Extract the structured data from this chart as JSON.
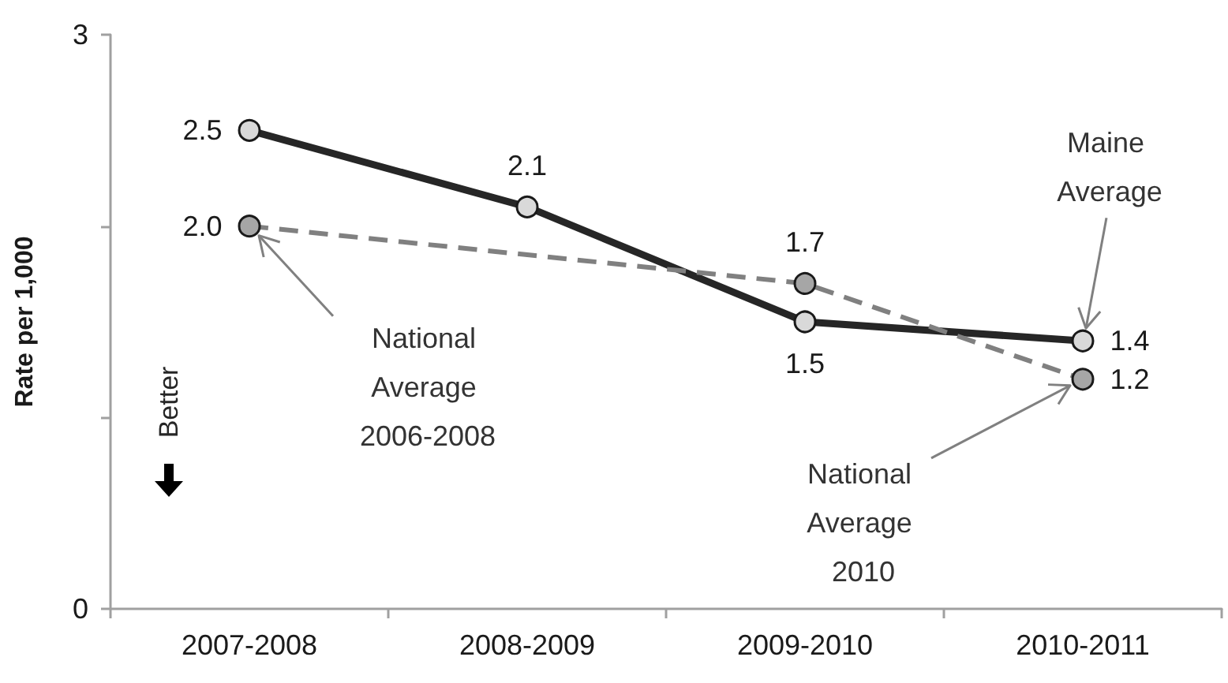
{
  "chart_data": {
    "type": "line",
    "ylabel": "Rate per 1,000",
    "categories": [
      "2007-2008",
      "2008-2009",
      "2009-2010",
      "2010-2011"
    ],
    "series": [
      {
        "color": "#262626",
        "line_style": "solid",
        "values": [
          2.5,
          2.1,
          1.5,
          1.4
        ],
        "value_labels": [
          "2.5",
          "2.1",
          "1.5",
          "1.4"
        ]
      },
      {
        "color": "#808080",
        "line_style": "dashed",
        "x": [
          "2007-2008",
          "2009-2010",
          "2010-2011"
        ],
        "values": [
          2.0,
          1.7,
          1.2
        ],
        "value_labels": [
          "2.0",
          "1.7",
          "1.2"
        ]
      }
    ],
    "ylim": [
      0,
      3
    ],
    "yticks": [
      0,
      {
        "value": 1,
        "label": null
      },
      {
        "value": 2,
        "label": null
      },
      3
    ],
    "marker": "circle",
    "grid": false,
    "annotations": [
      {
        "text": "National Average 2006-2008",
        "x": "2007-2008",
        "y": 2.0
      },
      {
        "text": "Maine Average",
        "x": "2010-2011",
        "y": 1.4
      },
      {
        "text": "National Average 2010",
        "x": "2010-2011",
        "y": 1.2
      },
      "Better"
    ]
  }
}
